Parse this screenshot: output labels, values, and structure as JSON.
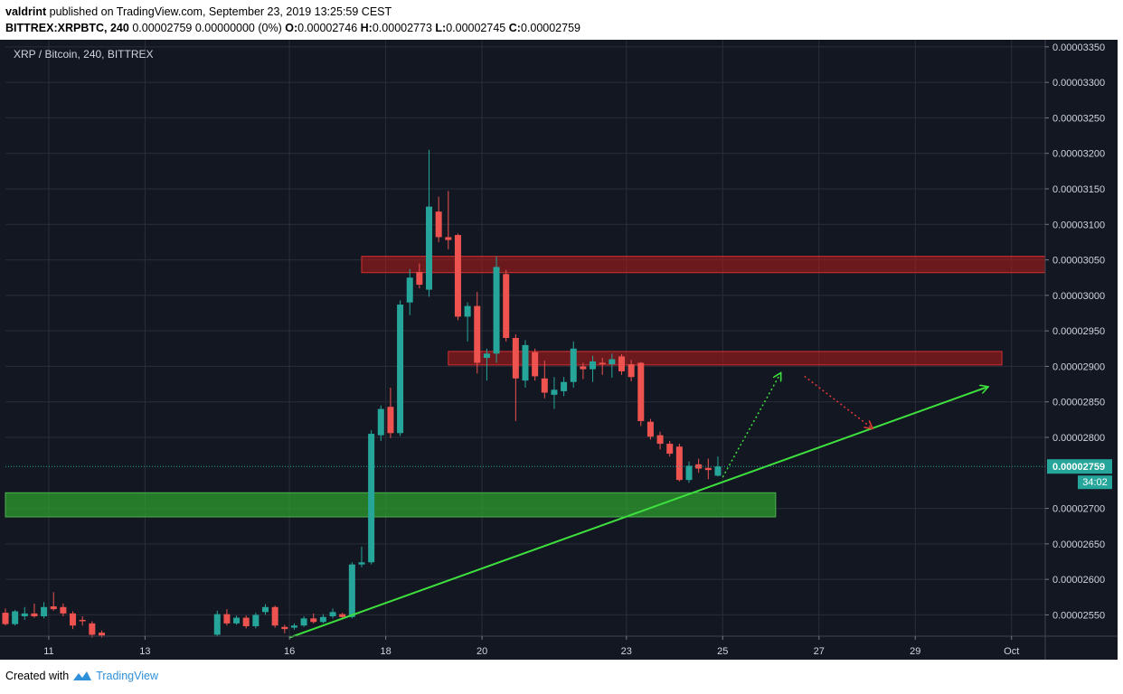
{
  "header": {
    "author": "valdrint",
    "published_text": "published on TradingView.com, September 23, 2019 13:25:59 CEST",
    "symbol": "BITTREX:XRPBTC, 240",
    "change_text": "0.00002759 0.00000000 (0%)",
    "o_label": "O:",
    "o_value": "0.00002746",
    "h_label": "H:",
    "h_value": "0.00002773",
    "l_label": "L:",
    "l_value": "0.00002745",
    "c_label": "C:",
    "c_value": "0.00002759"
  },
  "footer": {
    "created_with": "Created with",
    "brand": "TradingView"
  },
  "colors": {
    "background": "#131722",
    "up": "#26a69a",
    "down": "#ef5350",
    "resistance_zone": "#b71c1c",
    "support_zone": "#2e9e2e",
    "trendline": "#3ee03e",
    "last_price_bg": "#26a69a",
    "grid": "#2a2e39",
    "axis_text": "#d1d4dc"
  },
  "chart_data": {
    "type": "candlestick",
    "title": "XRP / Bitcoin, 240, BITTREX",
    "y_axis": {
      "min": 2.52e-05,
      "max": 3.36e-05,
      "ticks": [
        "0.00003350",
        "0.00003300",
        "0.00003250",
        "0.00003200",
        "0.00003150",
        "0.00003100",
        "0.00003050",
        "0.00003000",
        "0.00002950",
        "0.00002900",
        "0.00002850",
        "0.00002800",
        "0.00002700",
        "0.00002650",
        "0.00002600",
        "0.00002550"
      ]
    },
    "x_axis": {
      "range_days": [
        10.1,
        31.7
      ],
      "ticks": [
        {
          "day": 11,
          "label": "11"
        },
        {
          "day": 13,
          "label": "13"
        },
        {
          "day": 16,
          "label": "16"
        },
        {
          "day": 18,
          "label": "18"
        },
        {
          "day": 20,
          "label": "20"
        },
        {
          "day": 23,
          "label": "23"
        },
        {
          "day": 25,
          "label": "25"
        },
        {
          "day": 27,
          "label": "27"
        },
        {
          "day": 29,
          "label": "29"
        },
        {
          "day": 31,
          "label": "Oct"
        }
      ]
    },
    "last_price": {
      "value": 2.759e-05,
      "label": "0.00002759",
      "countdown": "34:02"
    },
    "candles": [
      {
        "t": 10.1,
        "o": 2.553,
        "h": 2.559,
        "l": 2.535,
        "c": 2.537
      },
      {
        "t": 10.3,
        "o": 2.537,
        "h": 2.557,
        "l": 2.535,
        "c": 2.555
      },
      {
        "t": 10.5,
        "o": 2.548,
        "h": 2.561,
        "l": 2.543,
        "c": 2.552
      },
      {
        "t": 10.7,
        "o": 2.552,
        "h": 2.566,
        "l": 2.546,
        "c": 2.548
      },
      {
        "t": 10.9,
        "o": 2.548,
        "h": 2.568,
        "l": 2.545,
        "c": 2.561
      },
      {
        "t": 11.1,
        "o": 2.562,
        "h": 2.582,
        "l": 2.556,
        "c": 2.558
      },
      {
        "t": 11.3,
        "o": 2.561,
        "h": 2.566,
        "l": 2.548,
        "c": 2.552
      },
      {
        "t": 11.5,
        "o": 2.552,
        "h": 2.555,
        "l": 2.53,
        "c": 2.535
      },
      {
        "t": 11.7,
        "o": 2.543,
        "h": 2.548,
        "l": 2.535,
        "c": 2.541
      },
      {
        "t": 11.9,
        "o": 2.538,
        "h": 2.541,
        "l": 2.518,
        "c": 2.522
      },
      {
        "t": 12.1,
        "o": 2.525,
        "h": 2.528,
        "l": 2.518,
        "c": 2.521
      },
      {
        "t": 14.5,
        "o": 2.522,
        "h": 2.556,
        "l": 2.52,
        "c": 2.551
      },
      {
        "t": 14.7,
        "o": 2.551,
        "h": 2.558,
        "l": 2.535,
        "c": 2.538
      },
      {
        "t": 14.9,
        "o": 2.538,
        "h": 2.549,
        "l": 2.536,
        "c": 2.546
      },
      {
        "t": 15.1,
        "o": 2.546,
        "h": 2.549,
        "l": 2.531,
        "c": 2.534
      },
      {
        "t": 15.3,
        "o": 2.534,
        "h": 2.553,
        "l": 2.531,
        "c": 2.55
      },
      {
        "t": 15.5,
        "o": 2.554,
        "h": 2.565,
        "l": 2.55,
        "c": 2.561
      },
      {
        "t": 15.7,
        "o": 2.561,
        "h": 2.563,
        "l": 2.532,
        "c": 2.535
      },
      {
        "t": 15.9,
        "o": 2.533,
        "h": 2.536,
        "l": 2.524,
        "c": 2.53
      },
      {
        "t": 16.1,
        "o": 2.532,
        "h": 2.538,
        "l": 2.529,
        "c": 2.535
      },
      {
        "t": 16.3,
        "o": 2.535,
        "h": 2.548,
        "l": 2.533,
        "c": 2.545
      },
      {
        "t": 16.5,
        "o": 2.545,
        "h": 2.552,
        "l": 2.538,
        "c": 2.54
      },
      {
        "t": 16.7,
        "o": 2.54,
        "h": 2.551,
        "l": 2.538,
        "c": 2.547
      },
      {
        "t": 16.9,
        "o": 2.548,
        "h": 2.559,
        "l": 2.545,
        "c": 2.554
      },
      {
        "t": 17.1,
        "o": 2.551,
        "h": 2.553,
        "l": 2.544,
        "c": 2.547
      },
      {
        "t": 17.3,
        "o": 2.547,
        "h": 2.624,
        "l": 2.545,
        "c": 2.621
      },
      {
        "t": 17.5,
        "o": 2.621,
        "h": 2.646,
        "l": 2.617,
        "c": 2.624
      },
      {
        "t": 17.7,
        "o": 2.624,
        "h": 2.81,
        "l": 2.621,
        "c": 2.805
      },
      {
        "t": 17.9,
        "o": 2.803,
        "h": 2.845,
        "l": 2.795,
        "c": 2.84
      },
      {
        "t": 18.1,
        "o": 2.843,
        "h": 2.87,
        "l": 2.799,
        "c": 2.806
      },
      {
        "t": 18.3,
        "o": 2.806,
        "h": 2.993,
        "l": 2.802,
        "c": 2.987
      },
      {
        "t": 18.5,
        "o": 2.99,
        "h": 3.037,
        "l": 2.972,
        "c": 3.025
      },
      {
        "t": 18.7,
        "o": 3.033,
        "h": 3.045,
        "l": 3.01,
        "c": 3.015
      },
      {
        "t": 18.9,
        "o": 3.008,
        "h": 3.205,
        "l": 2.998,
        "c": 3.125
      },
      {
        "t": 19.1,
        "o": 3.118,
        "h": 3.139,
        "l": 3.075,
        "c": 3.082
      },
      {
        "t": 19.3,
        "o": 3.082,
        "h": 3.147,
        "l": 3.065,
        "c": 3.078
      },
      {
        "t": 19.5,
        "o": 3.085,
        "h": 3.087,
        "l": 2.965,
        "c": 2.97
      },
      {
        "t": 19.7,
        "o": 2.97,
        "h": 2.99,
        "l": 2.935,
        "c": 2.985
      },
      {
        "t": 19.9,
        "o": 2.985,
        "h": 3.005,
        "l": 2.89,
        "c": 2.905
      },
      {
        "t": 20.1,
        "o": 2.912,
        "h": 2.925,
        "l": 2.88,
        "c": 2.918
      },
      {
        "t": 20.3,
        "o": 2.918,
        "h": 3.055,
        "l": 2.905,
        "c": 3.04
      },
      {
        "t": 20.5,
        "o": 3.03,
        "h": 3.036,
        "l": 2.935,
        "c": 2.94
      },
      {
        "t": 20.7,
        "o": 2.94,
        "h": 2.945,
        "l": 2.823,
        "c": 2.883
      },
      {
        "t": 20.9,
        "o": 2.88,
        "h": 2.937,
        "l": 2.87,
        "c": 2.93
      },
      {
        "t": 21.1,
        "o": 2.92,
        "h": 2.925,
        "l": 2.88,
        "c": 2.886
      },
      {
        "t": 21.3,
        "o": 2.883,
        "h": 2.908,
        "l": 2.855,
        "c": 2.863
      },
      {
        "t": 21.5,
        "o": 2.86,
        "h": 2.885,
        "l": 2.84,
        "c": 2.867
      },
      {
        "t": 21.7,
        "o": 2.865,
        "h": 2.885,
        "l": 2.858,
        "c": 2.878
      },
      {
        "t": 21.9,
        "o": 2.878,
        "h": 2.935,
        "l": 2.87,
        "c": 2.925
      },
      {
        "t": 22.1,
        "o": 2.9,
        "h": 2.905,
        "l": 2.882,
        "c": 2.896
      },
      {
        "t": 22.3,
        "o": 2.896,
        "h": 2.915,
        "l": 2.878,
        "c": 2.907
      },
      {
        "t": 22.5,
        "o": 2.905,
        "h": 2.912,
        "l": 2.888,
        "c": 2.903
      },
      {
        "t": 22.7,
        "o": 2.903,
        "h": 2.918,
        "l": 2.884,
        "c": 2.91
      },
      {
        "t": 22.9,
        "o": 2.914,
        "h": 2.917,
        "l": 2.888,
        "c": 2.893
      },
      {
        "t": 23.1,
        "o": 2.903,
        "h": 2.909,
        "l": 2.879,
        "c": 2.885
      },
      {
        "t": 23.3,
        "o": 2.905,
        "h": 2.906,
        "l": 2.816,
        "c": 2.823
      },
      {
        "t": 23.5,
        "o": 2.822,
        "h": 2.826,
        "l": 2.797,
        "c": 2.801
      },
      {
        "t": 23.7,
        "o": 2.803,
        "h": 2.808,
        "l": 2.783,
        "c": 2.791
      },
      {
        "t": 23.9,
        "o": 2.791,
        "h": 2.795,
        "l": 2.773,
        "c": 2.777
      },
      {
        "t": 24.1,
        "o": 2.787,
        "h": 2.791,
        "l": 2.738,
        "c": 2.74
      },
      {
        "t": 24.3,
        "o": 2.74,
        "h": 2.766,
        "l": 2.736,
        "c": 2.76
      },
      {
        "t": 24.5,
        "o": 2.762,
        "h": 2.77,
        "l": 2.75,
        "c": 2.756
      },
      {
        "t": 24.7,
        "o": 2.757,
        "h": 2.77,
        "l": 2.741,
        "c": 2.754
      },
      {
        "t": 24.9,
        "o": 2.746,
        "h": 2.773,
        "l": 2.745,
        "c": 2.759
      }
    ],
    "zones": [
      {
        "kind": "resistance",
        "day_from": 17.5,
        "day_to": 31.7,
        "y_low": 3.032,
        "y_high": 3.055
      },
      {
        "kind": "resistance",
        "day_from": 19.3,
        "day_to": 30.8,
        "y_low": 2.902,
        "y_high": 2.921
      },
      {
        "kind": "support",
        "day_from": 10.1,
        "day_to": 26.1,
        "y_low": 2.688,
        "y_high": 2.722
      }
    ],
    "trendline": {
      "from": {
        "day": 16.0,
        "price": 2.518
      },
      "to": {
        "day": 30.5,
        "price": 2.871
      }
    },
    "projections": [
      {
        "kind": "up",
        "from": {
          "day": 25.0,
          "price": 2.744
        },
        "to": {
          "day": 26.2,
          "price": 2.89
        }
      },
      {
        "kind": "down",
        "from": {
          "day": 26.7,
          "price": 2.886
        },
        "to": {
          "day": 28.1,
          "price": 2.813
        }
      }
    ],
    "y_unit_note": "candle prices in units of 1e-5 BTC"
  }
}
